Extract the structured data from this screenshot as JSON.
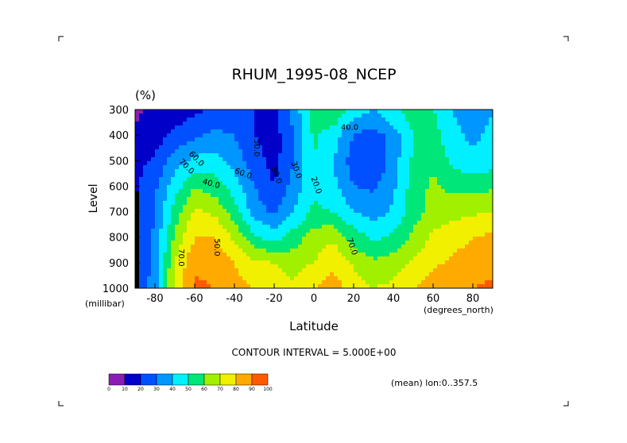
{
  "chart_data": {
    "type": "heatmap",
    "title": "RHUM_1995-08_NCEP",
    "units": "(%)",
    "xlabel": "Latitude",
    "x_unit": "(degrees_north)",
    "ylabel": "Level",
    "y_unit": "(millibar)",
    "xlim": [
      -90,
      90
    ],
    "ylim": [
      1000,
      300
    ],
    "x_ticks": [
      -80,
      -60,
      -40,
      -20,
      0,
      20,
      40,
      60,
      80
    ],
    "x_tick_labels": [
      "-80",
      "-60",
      "-40",
      "-20",
      "0",
      "20",
      "40",
      "60",
      "80"
    ],
    "y_ticks": [
      300,
      400,
      500,
      600,
      700,
      800,
      900,
      1000
    ],
    "y_tick_labels": [
      "300",
      "400",
      "500",
      "600",
      "700",
      "800",
      "900",
      "1000"
    ],
    "contour_interval_text": "CONTOUR INTERVAL = 5.000E+00",
    "mean_text": "(mean) lon:0..357.5",
    "colorbar": {
      "levels": [
        0,
        10,
        20,
        30,
        40,
        50,
        60,
        70,
        80,
        90,
        100
      ],
      "labels": [
        "0",
        "10",
        "20",
        "30",
        "40",
        "50",
        "60",
        "70",
        "80",
        "90",
        "100"
      ],
      "colors": [
        "#8a1eb4",
        "#0000c8",
        "#0050ff",
        "#0096ff",
        "#00f0ff",
        "#00e678",
        "#a0f000",
        "#f0f000",
        "#ffaa00",
        "#ff5a00",
        "#ff0000"
      ]
    },
    "contour_labels": [
      "40.0",
      "20.0",
      "30.0",
      "40.0",
      "50.0",
      "50.0",
      "60.0",
      "70.0",
      "70.0",
      "60.0",
      "40.0",
      "30.0",
      "30.0",
      "20.0",
      "70.0"
    ],
    "lat": [
      -90,
      -80,
      -70,
      -60,
      -50,
      -40,
      -30,
      -20,
      -10,
      0,
      10,
      20,
      30,
      40,
      50,
      60,
      70,
      80,
      90
    ],
    "levels": [
      300,
      400,
      500,
      600,
      700,
      800,
      900,
      1000
    ],
    "values": [
      [
        8,
        12,
        14,
        18,
        22,
        25,
        20,
        18,
        35,
        55,
        60,
        45,
        40,
        48,
        55,
        50,
        40,
        35,
        40
      ],
      [
        12,
        15,
        22,
        28,
        32,
        30,
        20,
        15,
        30,
        52,
        45,
        30,
        25,
        35,
        50,
        55,
        42,
        38,
        42
      ],
      [
        16,
        22,
        35,
        42,
        45,
        35,
        25,
        16,
        30,
        50,
        40,
        25,
        20,
        35,
        52,
        58,
        48,
        42,
        45
      ],
      [
        18,
        28,
        45,
        60,
        55,
        45,
        30,
        20,
        34,
        48,
        42,
        30,
        28,
        38,
        55,
        62,
        57,
        56,
        58
      ],
      [
        18,
        30,
        55,
        72,
        68,
        55,
        35,
        28,
        40,
        52,
        50,
        40,
        35,
        42,
        55,
        64,
        66,
        68,
        70
      ],
      [
        18,
        32,
        62,
        80,
        80,
        68,
        52,
        45,
        55,
        65,
        68,
        55,
        48,
        52,
        62,
        72,
        76,
        80,
        82
      ],
      [
        18,
        34,
        70,
        88,
        86,
        80,
        72,
        70,
        66,
        70,
        78,
        68,
        62,
        65,
        72,
        78,
        82,
        84,
        86
      ],
      [
        18,
        36,
        74,
        92,
        90,
        84,
        80,
        74,
        72,
        80,
        84,
        76,
        70,
        72,
        80,
        86,
        88,
        90,
        92
      ]
    ]
  }
}
